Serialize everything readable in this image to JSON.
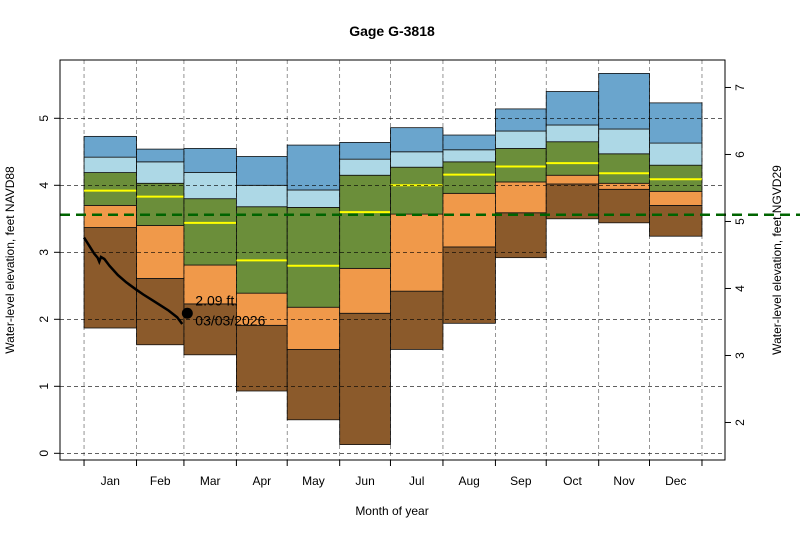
{
  "chart_data": {
    "type": "area",
    "title": "Gage G-3818",
    "xlabel": "Month of year",
    "ylabel": "Water-level elevation, feet NAVD88",
    "ylabel_right": "Water-level elevation, feet NGVD29",
    "right_axis_offset": 1.54,
    "ylim": [
      -0.1,
      5.87
    ],
    "yticks": [
      0,
      1,
      2,
      3,
      4,
      5
    ],
    "yticks_right": [
      2,
      3,
      4,
      5,
      6,
      7
    ],
    "grid": true,
    "categories": [
      "Jan",
      "Feb",
      "Mar",
      "Apr",
      "May",
      "Jun",
      "Jul",
      "Aug",
      "Sep",
      "Oct",
      "Nov",
      "Dec"
    ],
    "month_days": [
      31,
      28,
      31,
      30,
      31,
      30,
      31,
      31,
      30,
      31,
      30,
      31
    ],
    "bands": {
      "min": [
        1.87,
        1.62,
        1.47,
        0.93,
        0.5,
        0.13,
        1.55,
        1.94,
        2.92,
        3.5,
        3.44,
        3.24
      ],
      "p10": [
        3.37,
        2.61,
        2.23,
        1.91,
        1.55,
        2.09,
        2.42,
        3.08,
        3.59,
        4.02,
        3.94,
        3.7
      ],
      "p25": [
        3.7,
        3.4,
        2.81,
        2.39,
        2.18,
        2.76,
        3.57,
        3.88,
        4.05,
        4.15,
        4.03,
        3.91
      ],
      "median": [
        3.92,
        3.83,
        3.44,
        2.88,
        2.8,
        3.6,
        4.0,
        4.16,
        4.28,
        4.33,
        4.18,
        4.09
      ],
      "p75": [
        4.19,
        4.03,
        3.8,
        3.68,
        3.67,
        4.15,
        4.27,
        4.35,
        4.55,
        4.65,
        4.47,
        4.3
      ],
      "p90": [
        4.42,
        4.35,
        4.19,
        4.0,
        3.93,
        4.39,
        4.5,
        4.53,
        4.81,
        4.9,
        4.84,
        4.63
      ],
      "max": [
        4.73,
        4.54,
        4.55,
        4.43,
        4.6,
        4.64,
        4.86,
        4.75,
        5.14,
        5.4,
        5.67,
        5.23
      ]
    },
    "band_colors": {
      "min_p10": "#8b5a2b",
      "p10_p25": "#f0994a",
      "p25_p75": "#6b8e3a",
      "p75_p90": "#add8e6",
      "p90_max": "#6aa5cd",
      "median": "#ffff00"
    },
    "reference_line": {
      "value": 3.56,
      "color": "#006400"
    },
    "current_series": {
      "day_of_year": [
        0,
        3,
        6,
        8,
        9,
        10,
        12,
        15,
        20,
        25,
        31,
        35,
        40,
        45,
        50,
        55,
        58
      ],
      "values": [
        3.22,
        3.1,
        2.98,
        2.92,
        2.86,
        2.93,
        2.9,
        2.8,
        2.66,
        2.55,
        2.44,
        2.37,
        2.29,
        2.21,
        2.13,
        2.03,
        1.93
      ],
      "color": "#000000"
    },
    "current_point": {
      "day_of_year": 61,
      "value": 2.09,
      "label_value": "2.09 ft.",
      "label_date": "03/03/2026"
    }
  }
}
